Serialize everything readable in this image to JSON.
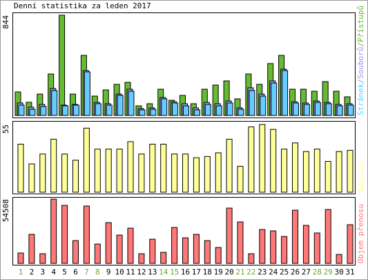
{
  "chart_data": [
    {
      "type": "grouped-bar",
      "title": "Denní statistika za leden 2017",
      "categories": [
        "1",
        "2",
        "3",
        "4",
        "5",
        "6",
        "7",
        "8",
        "9",
        "10",
        "11",
        "12",
        "13",
        "14",
        "15",
        "16",
        "17",
        "18",
        "19",
        "20",
        "21",
        "22",
        "23",
        "24",
        "25",
        "26",
        "27",
        "28",
        "29",
        "30",
        "31"
      ],
      "category_colors": [
        "#66aa33",
        "#000000",
        "#000000",
        "#000000",
        "#000000",
        "#000000",
        "#66aa33",
        "#66aa33",
        "#000000",
        "#000000",
        "#000000",
        "#000000",
        "#000000",
        "#66aa33",
        "#66aa33",
        "#000000",
        "#000000",
        "#000000",
        "#000000",
        "#000000",
        "#66aa33",
        "#66aa33",
        "#000000",
        "#000000",
        "#000000",
        "#000000",
        "#000000",
        "#66aa33",
        "#66aa33",
        "#000000",
        "#000000"
      ],
      "legend_separator": "/",
      "series": [
        {
          "name": "Stránek",
          "color": "#66ccff",
          "values": [
            87,
            52,
            76,
            210,
            81,
            87,
            367,
            99,
            87,
            169,
            204,
            47,
            52,
            140,
            105,
            81,
            47,
            93,
            81,
            105,
            52,
            210,
            163,
            273,
            378,
            105,
            93,
            110,
            99,
            81,
            87
          ]
        },
        {
          "name": "Souborů",
          "color": "#9999ee",
          "values": [
            105,
            70,
            93,
            227,
            87,
            93,
            378,
            110,
            99,
            180,
            221,
            58,
            64,
            151,
            116,
            99,
            64,
            110,
            99,
            122,
            64,
            233,
            180,
            291,
            390,
            116,
            105,
            122,
            110,
            93,
            99
          ]
        },
        {
          "name": "Přístupů",
          "color": "#66bb33",
          "values": [
            198,
            111,
            180,
            349,
            844,
            180,
            506,
            163,
            215,
            262,
            279,
            81,
            99,
            221,
            128,
            169,
            99,
            221,
            256,
            291,
            140,
            349,
            262,
            437,
            506,
            221,
            221,
            204,
            285,
            204,
            157
          ]
        }
      ],
      "ylim": [
        0,
        844
      ],
      "yticks": [
        844
      ]
    },
    {
      "type": "bar",
      "series": [
        {
          "name": "Návštěv",
          "color": "#ffff99",
          "values": [
            39,
            23,
            31,
            43,
            31,
            26,
            52,
            35,
            35,
            35,
            41,
            31,
            39,
            39,
            31,
            31,
            28,
            29,
            32,
            43,
            21,
            53,
            55,
            51,
            35,
            40,
            33,
            35,
            25,
            33,
            34
          ]
        }
      ],
      "ylim": [
        0,
        55
      ],
      "yticks": [
        55
      ]
    },
    {
      "type": "bar",
      "series": [
        {
          "name": "Objem přenosu",
          "color": "#ff7777",
          "values": [
            8792,
            24617,
            8206,
            54508,
            49233,
            19342,
            48647,
            16411,
            34581,
            24031,
            29892,
            8206,
            20514,
            9378,
            30478,
            21686,
            24617,
            19342,
            13481,
            46889,
            35167,
            8206,
            28720,
            27547,
            22858,
            45131,
            32236,
            25789,
            45717,
            7620,
            32822
          ]
        }
      ],
      "ylim": [
        0,
        54508
      ],
      "yticks": [
        54508
      ]
    }
  ]
}
